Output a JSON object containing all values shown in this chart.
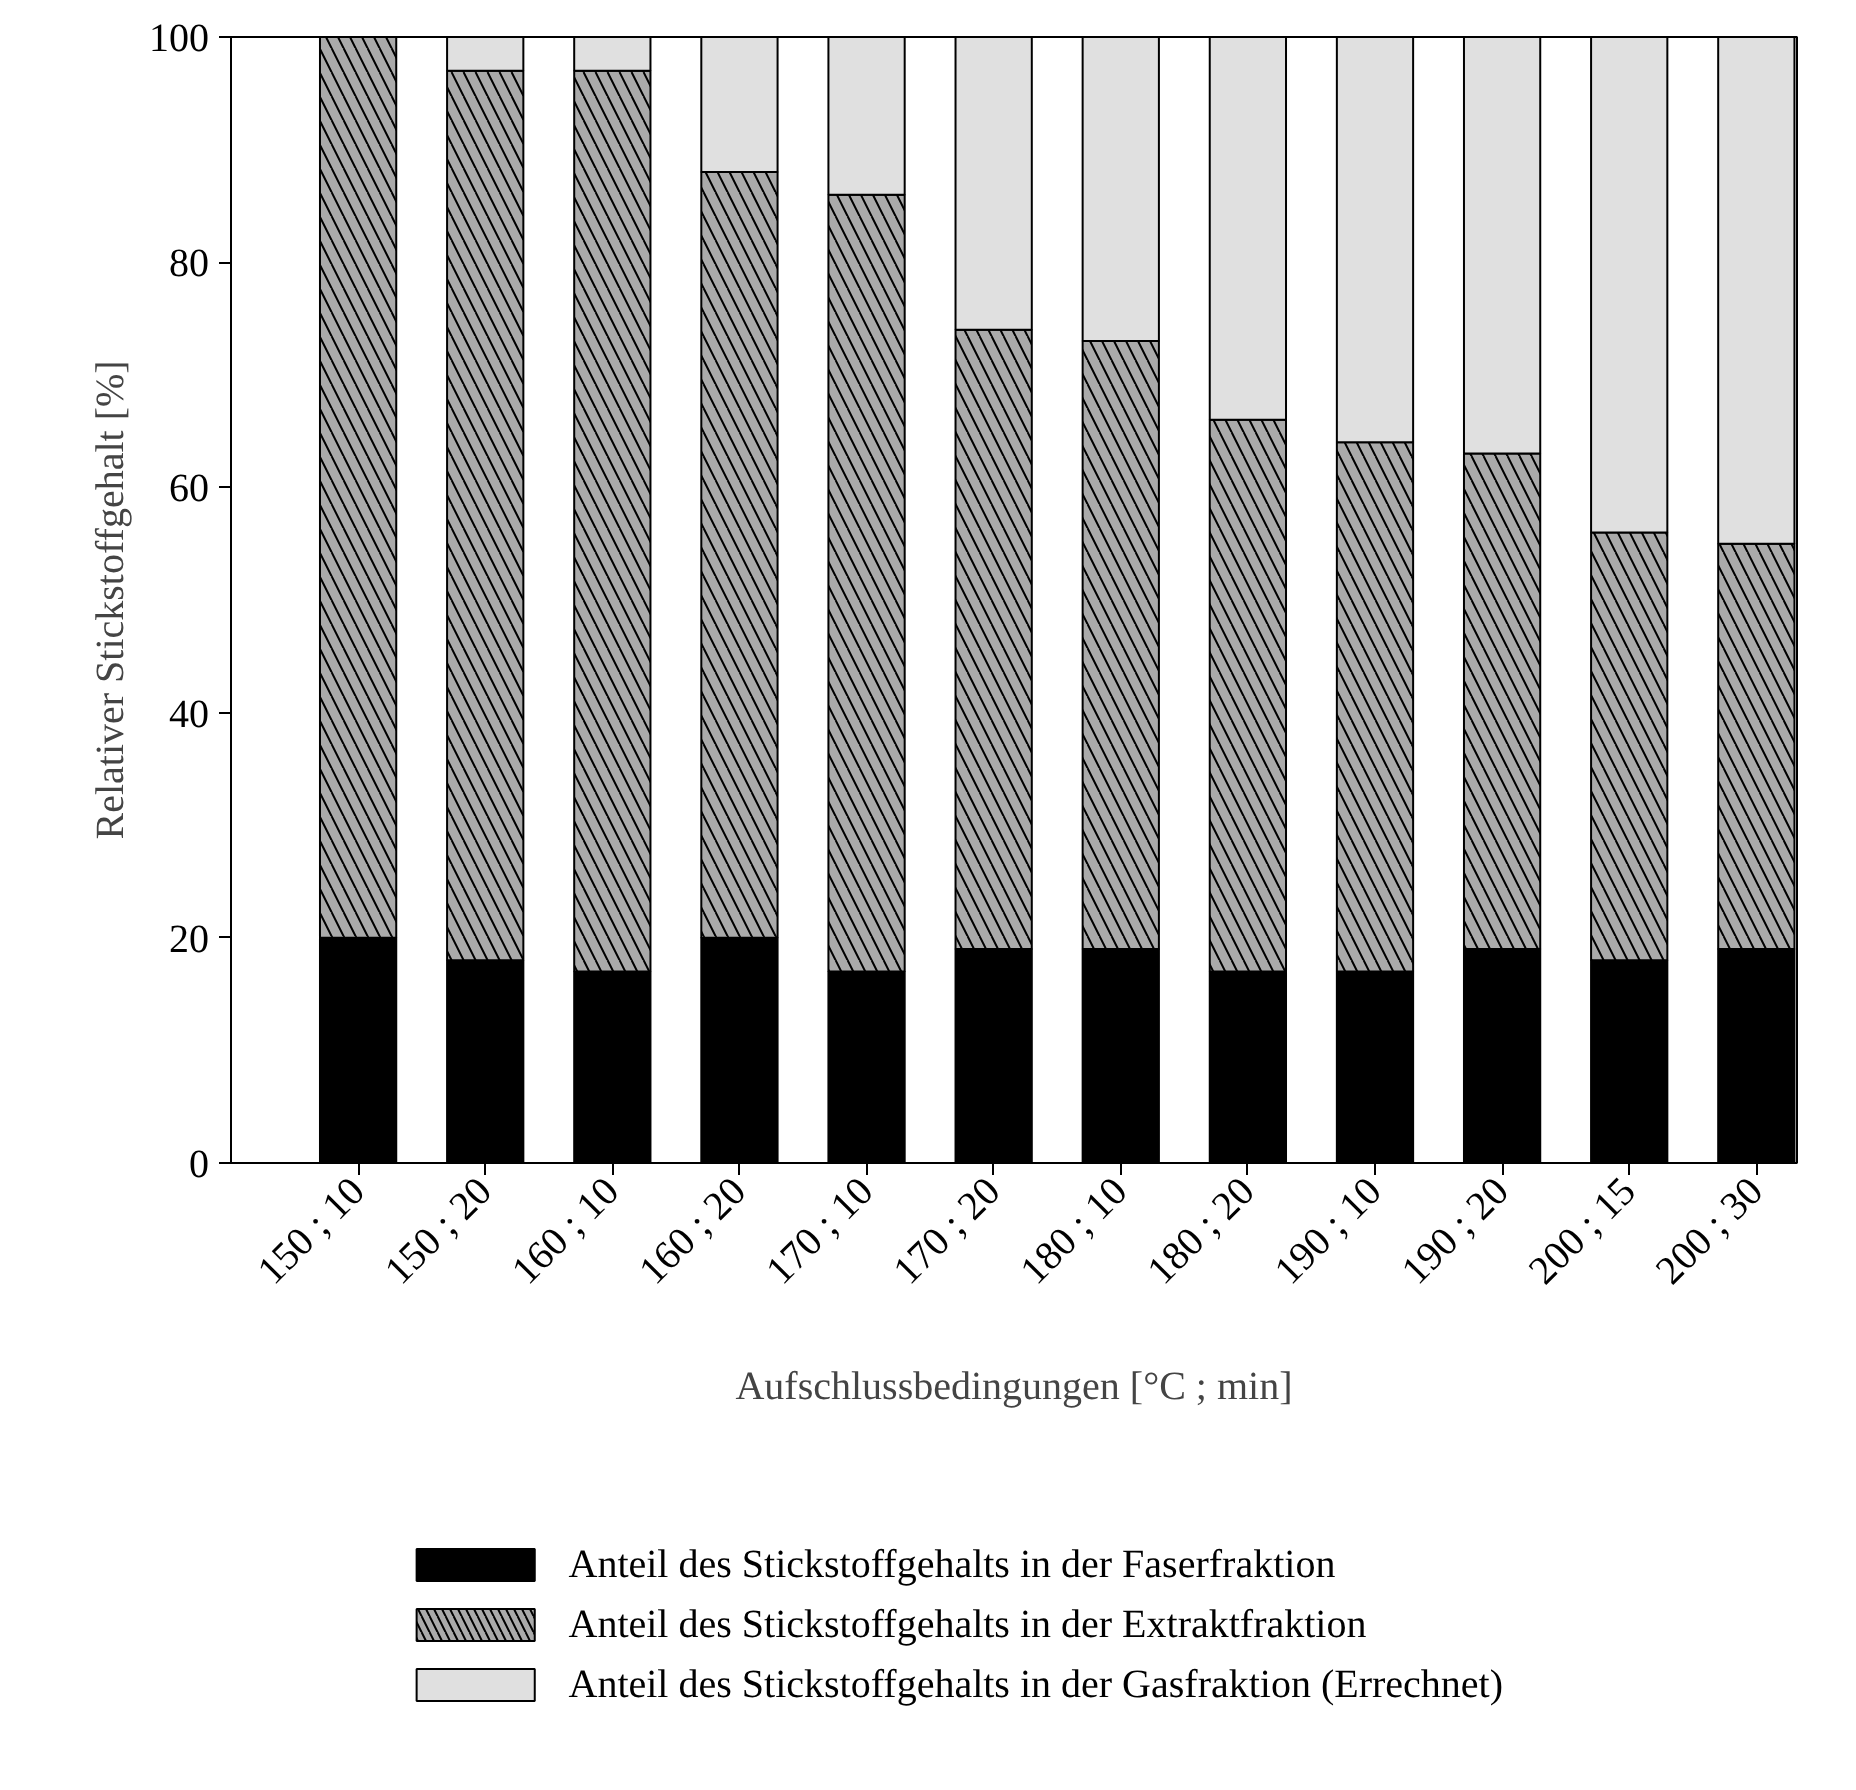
{
  "chart_data": {
    "type": "bar",
    "stacked": true,
    "xlabel": "Aufschlussbedingungen [°C ; min]",
    "ylabel": "Relativer Stickstoffgehalt [%]",
    "categories": [
      "150 ; 10",
      "150 ; 20",
      "160 ; 10",
      "160 ; 20",
      "170 ; 10",
      "170 ; 20",
      "180 ; 10",
      "180 ; 20",
      "190 ; 10",
      "190 ; 20",
      "200 ; 15",
      "200 ; 30"
    ],
    "series": [
      {
        "name": "Anteil des Stickstoffgehalts in der Faserfraktion",
        "color": "#000000",
        "values": [
          20,
          18,
          17,
          20,
          17,
          19,
          19,
          17,
          17,
          19,
          18,
          19
        ]
      },
      {
        "name": "Anteil des Stickstoffgehalts in der Extraktfraktion",
        "color": "#aaaaaa",
        "values": [
          80,
          79,
          80,
          68,
          69,
          55,
          54,
          49,
          47,
          44,
          38,
          36
        ]
      },
      {
        "name": "Anteil des Stickstoffgehalts in der Gasfraktion (Errechnet)",
        "color": "#e0e0e0",
        "values": [
          0,
          3,
          3,
          12,
          14,
          26,
          27,
          34,
          36,
          37,
          44,
          45
        ]
      }
    ],
    "ylim": [
      0,
      100
    ],
    "yticks": [
      0,
      20,
      40,
      60,
      80,
      100
    ],
    "grid": false,
    "legend": "bottom"
  }
}
